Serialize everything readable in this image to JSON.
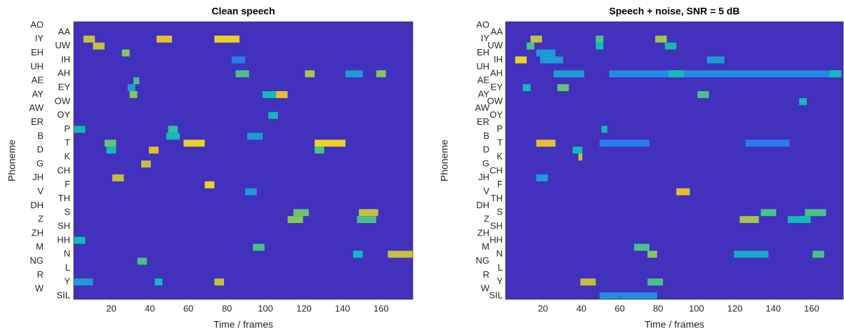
{
  "chart_data": [
    {
      "type": "heatmap",
      "title": "Clean speech",
      "xlabel": "Time / frames",
      "ylabel": "Phoneme",
      "rows": [
        "AO",
        "AA",
        "IY",
        "UW",
        "EH",
        "IH",
        "UH",
        "AH",
        "AE",
        "EY",
        "AY",
        "OW",
        "AW",
        "OY",
        "ER",
        "P",
        "B",
        "T",
        "D",
        "K",
        "G",
        "CH",
        "JH",
        "F",
        "V",
        "TH",
        "DH",
        "S",
        "Z",
        "SH",
        "ZH",
        "HH",
        "M",
        "N",
        "NG",
        "L",
        "R",
        "Y",
        "W",
        "SIL"
      ],
      "xlim": [
        0.5,
        176.5
      ],
      "xticks": [
        20,
        40,
        60,
        80,
        100,
        120,
        140,
        160
      ],
      "zlim": [
        0,
        1
      ],
      "colormap": "parula",
      "background_value": 0.05,
      "cells": [
        {
          "row": 2,
          "start": 6,
          "end": 11,
          "value": 0.8
        },
        {
          "row": 2,
          "start": 44,
          "end": 51,
          "value": 0.85
        },
        {
          "row": 2,
          "start": 74,
          "end": 86,
          "value": 0.9
        },
        {
          "row": 3,
          "start": 11,
          "end": 16,
          "value": 0.8
        },
        {
          "row": 4,
          "start": 26,
          "end": 29,
          "value": 0.7
        },
        {
          "row": 5,
          "start": 83,
          "end": 89,
          "value": 0.3
        },
        {
          "row": 7,
          "start": 85,
          "end": 91,
          "value": 0.6
        },
        {
          "row": 7,
          "start": 121,
          "end": 125,
          "value": 0.75
        },
        {
          "row": 7,
          "start": 142,
          "end": 150,
          "value": 0.4
        },
        {
          "row": 7,
          "start": 158,
          "end": 162,
          "value": 0.7
        },
        {
          "row": 8,
          "start": 32,
          "end": 34,
          "value": 0.6
        },
        {
          "row": 9,
          "start": 29,
          "end": 32,
          "value": 0.4
        },
        {
          "row": 10,
          "start": 30,
          "end": 33,
          "value": 0.7
        },
        {
          "row": 10,
          "start": 99,
          "end": 105,
          "value": 0.5
        },
        {
          "row": 10,
          "start": 106,
          "end": 111,
          "value": 0.85
        },
        {
          "row": 13,
          "start": 102,
          "end": 106,
          "value": 0.5
        },
        {
          "row": 15,
          "start": 1,
          "end": 6,
          "value": 0.5
        },
        {
          "row": 15,
          "start": 50,
          "end": 54,
          "value": 0.55
        },
        {
          "row": 16,
          "start": 49,
          "end": 55,
          "value": 0.5
        },
        {
          "row": 16,
          "start": 91,
          "end": 98,
          "value": 0.4
        },
        {
          "row": 17,
          "start": 17,
          "end": 22,
          "value": 0.65
        },
        {
          "row": 17,
          "start": 58,
          "end": 68,
          "value": 0.9
        },
        {
          "row": 17,
          "start": 126,
          "end": 141,
          "value": 0.9
        },
        {
          "row": 18,
          "start": 18,
          "end": 22,
          "value": 0.5
        },
        {
          "row": 18,
          "start": 40,
          "end": 44,
          "value": 0.85
        },
        {
          "row": 18,
          "start": 126,
          "end": 130,
          "value": 0.6
        },
        {
          "row": 20,
          "start": 36,
          "end": 40,
          "value": 0.8
        },
        {
          "row": 22,
          "start": 21,
          "end": 26,
          "value": 0.8
        },
        {
          "row": 23,
          "start": 69,
          "end": 73,
          "value": 0.9
        },
        {
          "row": 24,
          "start": 90,
          "end": 95,
          "value": 0.4
        },
        {
          "row": 27,
          "start": 115,
          "end": 122,
          "value": 0.65
        },
        {
          "row": 27,
          "start": 149,
          "end": 158,
          "value": 0.8
        },
        {
          "row": 28,
          "start": 112,
          "end": 119,
          "value": 0.7
        },
        {
          "row": 28,
          "start": 148,
          "end": 157,
          "value": 0.6
        },
        {
          "row": 31,
          "start": 1,
          "end": 6,
          "value": 0.5
        },
        {
          "row": 32,
          "start": 94,
          "end": 99,
          "value": 0.6
        },
        {
          "row": 33,
          "start": 146,
          "end": 150,
          "value": 0.5
        },
        {
          "row": 33,
          "start": 164,
          "end": 176,
          "value": 0.8
        },
        {
          "row": 34,
          "start": 34,
          "end": 38,
          "value": 0.6
        },
        {
          "row": 37,
          "start": 1,
          "end": 10,
          "value": 0.4
        },
        {
          "row": 37,
          "start": 43,
          "end": 46,
          "value": 0.5
        },
        {
          "row": 37,
          "start": 74,
          "end": 78,
          "value": 0.8
        }
      ]
    },
    {
      "type": "heatmap",
      "title": "Speech + noise, SNR = 5 dB",
      "xlabel": "Time / frames",
      "ylabel": "Phoneme",
      "rows": [
        "AO",
        "AA",
        "IY",
        "UW",
        "EH",
        "IH",
        "UH",
        "AH",
        "AE",
        "EY",
        "AY",
        "OW",
        "AW",
        "OY",
        "ER",
        "P",
        "B",
        "T",
        "D",
        "K",
        "G",
        "CH",
        "JH",
        "F",
        "V",
        "TH",
        "DH",
        "S",
        "Z",
        "SH",
        "ZH",
        "HH",
        "M",
        "N",
        "NG",
        "L",
        "R",
        "Y",
        "W",
        "SIL"
      ],
      "xlim": [
        0.5,
        176.5
      ],
      "xticks": [
        20,
        40,
        60,
        80,
        100,
        120,
        140,
        160
      ],
      "zlim": [
        0,
        1
      ],
      "colormap": "parula",
      "background_value": 0.05,
      "cells": [
        {
          "row": 2,
          "start": 14,
          "end": 19,
          "value": 0.8
        },
        {
          "row": 2,
          "start": 48,
          "end": 51,
          "value": 0.6
        },
        {
          "row": 2,
          "start": 79,
          "end": 84,
          "value": 0.75
        },
        {
          "row": 3,
          "start": 12,
          "end": 15,
          "value": 0.6
        },
        {
          "row": 3,
          "start": 48,
          "end": 51,
          "value": 0.5
        },
        {
          "row": 3,
          "start": 84,
          "end": 89,
          "value": 0.5
        },
        {
          "row": 4,
          "start": 17,
          "end": 26,
          "value": 0.4
        },
        {
          "row": 5,
          "start": 6,
          "end": 11,
          "value": 0.9
        },
        {
          "row": 5,
          "start": 19,
          "end": 30,
          "value": 0.4
        },
        {
          "row": 5,
          "start": 106,
          "end": 114,
          "value": 0.4
        },
        {
          "row": 7,
          "start": 26,
          "end": 41,
          "value": 0.4
        },
        {
          "row": 7,
          "start": 55,
          "end": 175,
          "value": 0.35
        },
        {
          "row": 7,
          "start": 86,
          "end": 93,
          "value": 0.5
        },
        {
          "row": 7,
          "start": 170,
          "end": 175,
          "value": 0.5
        },
        {
          "row": 9,
          "start": 10,
          "end": 13,
          "value": 0.5
        },
        {
          "row": 9,
          "start": 28,
          "end": 33,
          "value": 0.65
        },
        {
          "row": 10,
          "start": 101,
          "end": 106,
          "value": 0.6
        },
        {
          "row": 11,
          "start": 154,
          "end": 157,
          "value": 0.5
        },
        {
          "row": 15,
          "start": 51,
          "end": 53,
          "value": 0.5
        },
        {
          "row": 17,
          "start": 17,
          "end": 26,
          "value": 0.85
        },
        {
          "row": 17,
          "start": 50,
          "end": 75,
          "value": 0.3
        },
        {
          "row": 17,
          "start": 126,
          "end": 148,
          "value": 0.3
        },
        {
          "row": 18,
          "start": 36,
          "end": 40,
          "value": 0.5
        },
        {
          "row": 19,
          "start": 39,
          "end": 40,
          "value": 0.8
        },
        {
          "row": 22,
          "start": 17,
          "end": 22,
          "value": 0.4
        },
        {
          "row": 24,
          "start": 90,
          "end": 96,
          "value": 0.85
        },
        {
          "row": 27,
          "start": 134,
          "end": 141,
          "value": 0.6
        },
        {
          "row": 27,
          "start": 157,
          "end": 167,
          "value": 0.6
        },
        {
          "row": 28,
          "start": 123,
          "end": 132,
          "value": 0.75
        },
        {
          "row": 28,
          "start": 148,
          "end": 159,
          "value": 0.5
        },
        {
          "row": 32,
          "start": 68,
          "end": 75,
          "value": 0.6
        },
        {
          "row": 33,
          "start": 75,
          "end": 79,
          "value": 0.7
        },
        {
          "row": 33,
          "start": 120,
          "end": 137,
          "value": 0.45
        },
        {
          "row": 33,
          "start": 161,
          "end": 166,
          "value": 0.6
        },
        {
          "row": 37,
          "start": 40,
          "end": 47,
          "value": 0.8
        },
        {
          "row": 37,
          "start": 75,
          "end": 82,
          "value": 0.6
        },
        {
          "row": 39,
          "start": 50,
          "end": 79,
          "value": 0.35
        }
      ]
    }
  ]
}
